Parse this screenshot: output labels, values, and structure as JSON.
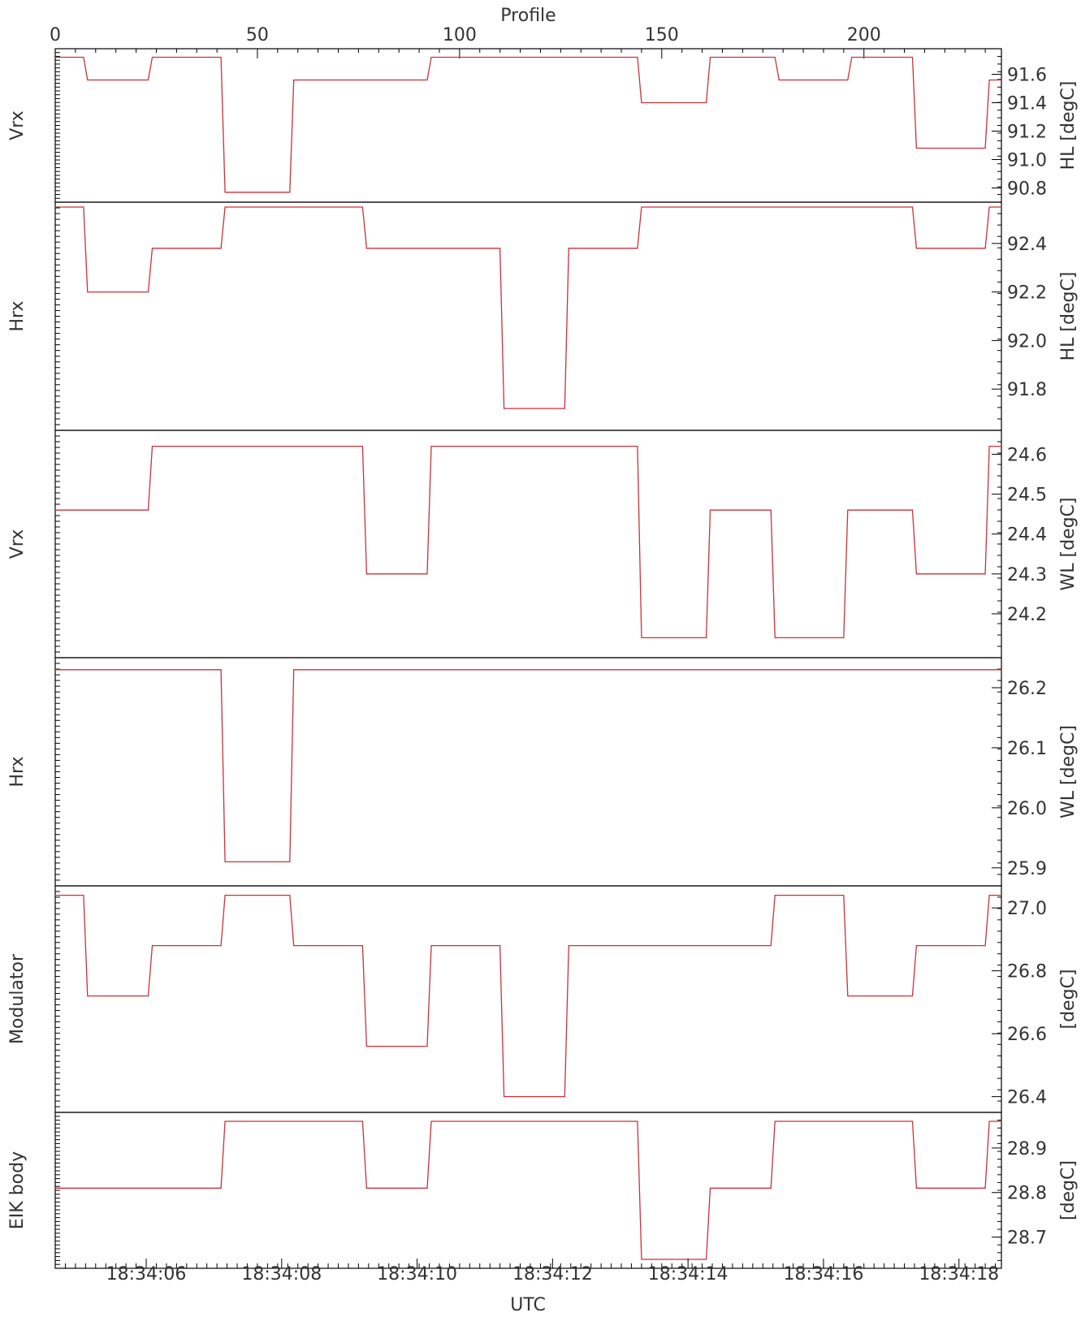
{
  "chart_data": {
    "type": "line",
    "top_axis": {
      "title": "Profile",
      "range": [
        0,
        234
      ],
      "ticks": [
        "0",
        "50",
        "100",
        "150",
        "200"
      ],
      "tick_values": [
        0,
        50,
        100,
        150,
        200
      ]
    },
    "bottom_axis": {
      "title": "UTC",
      "ticks": [
        "18:34:06",
        "18:34:08",
        "18:34:10",
        "18:34:12",
        "18:34:14",
        "18:34:16",
        "18:34:18"
      ],
      "tick_profiles": [
        22.5,
        56,
        89.5,
        123,
        156.5,
        190,
        223.5
      ]
    },
    "panels": [
      {
        "left_label": "Vrx",
        "right_label": "HL [degC]",
        "ylim": [
          90.7,
          91.78
        ],
        "yticks": [
          "90.8",
          "91.0",
          "91.2",
          "91.4",
          "91.6"
        ],
        "ytick_values": [
          90.8,
          91.0,
          91.2,
          91.4,
          91.6
        ],
        "points": [
          [
            0,
            91.72
          ],
          [
            7,
            91.72
          ],
          [
            8,
            91.56
          ],
          [
            23,
            91.56
          ],
          [
            24,
            91.72
          ],
          [
            41,
            91.72
          ],
          [
            42,
            90.77
          ],
          [
            58,
            90.77
          ],
          [
            59,
            91.56
          ],
          [
            92,
            91.56
          ],
          [
            93,
            91.72
          ],
          [
            144,
            91.72
          ],
          [
            145,
            91.4
          ],
          [
            161,
            91.4
          ],
          [
            162,
            91.72
          ],
          [
            178,
            91.72
          ],
          [
            179,
            91.56
          ],
          [
            196,
            91.56
          ],
          [
            197,
            91.72
          ],
          [
            212,
            91.72
          ],
          [
            213,
            91.08
          ],
          [
            230,
            91.08
          ],
          [
            231,
            91.56
          ],
          [
            234,
            91.56
          ]
        ]
      },
      {
        "left_label": "Hrx",
        "right_label": "HL [degC]",
        "ylim": [
          91.63,
          92.57
        ],
        "yticks": [
          "91.8",
          "92.0",
          "92.2",
          "92.4"
        ],
        "ytick_values": [
          91.8,
          92.0,
          92.2,
          92.4
        ],
        "points": [
          [
            0,
            92.55
          ],
          [
            7,
            92.55
          ],
          [
            8,
            92.2
          ],
          [
            23,
            92.2
          ],
          [
            24,
            92.38
          ],
          [
            41,
            92.38
          ],
          [
            42,
            92.55
          ],
          [
            76,
            92.55
          ],
          [
            77,
            92.38
          ],
          [
            110,
            92.38
          ],
          [
            111,
            91.72
          ],
          [
            126,
            91.72
          ],
          [
            127,
            92.38
          ],
          [
            144,
            92.38
          ],
          [
            145,
            92.55
          ],
          [
            212,
            92.55
          ],
          [
            213,
            92.38
          ],
          [
            230,
            92.38
          ],
          [
            231,
            92.55
          ],
          [
            234,
            92.55
          ]
        ]
      },
      {
        "left_label": "Vrx",
        "right_label": "WL [degC]",
        "ylim": [
          24.09,
          24.66
        ],
        "yticks": [
          "24.2",
          "24.3",
          "24.4",
          "24.5",
          "24.6"
        ],
        "ytick_values": [
          24.2,
          24.3,
          24.4,
          24.5,
          24.6
        ],
        "points": [
          [
            0,
            24.46
          ],
          [
            23,
            24.46
          ],
          [
            24,
            24.62
          ],
          [
            76,
            24.62
          ],
          [
            77,
            24.3
          ],
          [
            92,
            24.3
          ],
          [
            93,
            24.62
          ],
          [
            144,
            24.62
          ],
          [
            145,
            24.14
          ],
          [
            161,
            24.14
          ],
          [
            162,
            24.46
          ],
          [
            177,
            24.46
          ],
          [
            178,
            24.14
          ],
          [
            195,
            24.14
          ],
          [
            196,
            24.46
          ],
          [
            212,
            24.46
          ],
          [
            213,
            24.3
          ],
          [
            230,
            24.3
          ],
          [
            231,
            24.62
          ],
          [
            234,
            24.62
          ]
        ]
      },
      {
        "left_label": "Hrx",
        "right_label": "WL [degC]",
        "ylim": [
          25.87,
          26.25
        ],
        "yticks": [
          "25.9",
          "26.0",
          "26.1",
          "26.2"
        ],
        "ytick_values": [
          25.9,
          26.0,
          26.1,
          26.2
        ],
        "points": [
          [
            0,
            26.23
          ],
          [
            41,
            26.23
          ],
          [
            42,
            25.91
          ],
          [
            58,
            25.91
          ],
          [
            59,
            26.23
          ],
          [
            234,
            26.23
          ]
        ]
      },
      {
        "left_label": "Modulator",
        "right_label": "[degC]",
        "ylim": [
          26.35,
          27.07
        ],
        "yticks": [
          "26.4",
          "26.6",
          "26.8",
          "27.0"
        ],
        "ytick_values": [
          26.4,
          26.6,
          26.8,
          27.0
        ],
        "points": [
          [
            0,
            27.04
          ],
          [
            7,
            27.04
          ],
          [
            8,
            26.72
          ],
          [
            23,
            26.72
          ],
          [
            24,
            26.88
          ],
          [
            41,
            26.88
          ],
          [
            42,
            27.04
          ],
          [
            58,
            27.04
          ],
          [
            59,
            26.88
          ],
          [
            76,
            26.88
          ],
          [
            77,
            26.56
          ],
          [
            92,
            26.56
          ],
          [
            93,
            26.88
          ],
          [
            110,
            26.88
          ],
          [
            111,
            26.4
          ],
          [
            126,
            26.4
          ],
          [
            127,
            26.88
          ],
          [
            177,
            26.88
          ],
          [
            178,
            27.04
          ],
          [
            195,
            27.04
          ],
          [
            196,
            26.72
          ],
          [
            212,
            26.72
          ],
          [
            213,
            26.88
          ],
          [
            230,
            26.88
          ],
          [
            231,
            27.04
          ],
          [
            234,
            27.04
          ]
        ]
      },
      {
        "left_label": "EIK body",
        "right_label": "[degC]",
        "ylim": [
          28.63,
          28.98
        ],
        "yticks": [
          "28.7",
          "28.8",
          "28.9"
        ],
        "ytick_values": [
          28.7,
          28.8,
          28.9
        ],
        "points": [
          [
            0,
            28.81
          ],
          [
            41,
            28.81
          ],
          [
            42,
            28.96
          ],
          [
            76,
            28.96
          ],
          [
            77,
            28.81
          ],
          [
            92,
            28.81
          ],
          [
            93,
            28.96
          ],
          [
            144,
            28.96
          ],
          [
            145,
            28.65
          ],
          [
            161,
            28.65
          ],
          [
            162,
            28.81
          ],
          [
            177,
            28.81
          ],
          [
            178,
            28.96
          ],
          [
            212,
            28.96
          ],
          [
            213,
            28.81
          ],
          [
            230,
            28.81
          ],
          [
            231,
            28.96
          ],
          [
            234,
            28.96
          ]
        ]
      }
    ],
    "colors": {
      "trace": "#c8323c",
      "frame": "#000000",
      "text": "#333333"
    }
  }
}
